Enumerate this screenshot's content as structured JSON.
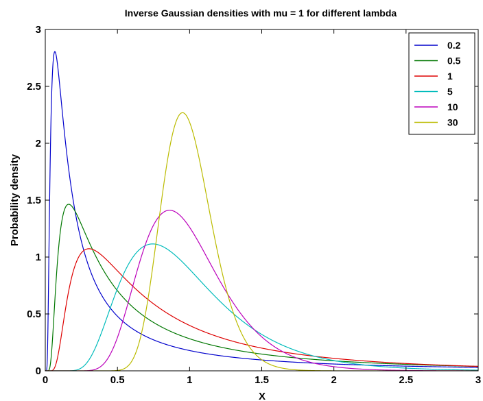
{
  "chart_data": {
    "type": "line",
    "title": "Inverse Gaussian densities with mu = 1 for different lambda",
    "xlabel": "X",
    "ylabel": "Probability density",
    "xlim": [
      0,
      3
    ],
    "ylim": [
      0,
      3
    ],
    "x_ticks": [
      "0",
      "0.5",
      "1",
      "1.5",
      "2",
      "2.5",
      "3"
    ],
    "y_ticks": [
      "0",
      "0.5",
      "1",
      "1.5",
      "2",
      "2.5",
      "3"
    ],
    "grid": false,
    "legend_position": "top-right",
    "mu": 1,
    "series": [
      {
        "name": "0.2",
        "lambda": 0.2,
        "color": "#0000cc"
      },
      {
        "name": "0.5",
        "lambda": 0.5,
        "color": "#007700"
      },
      {
        "name": "1",
        "lambda": 1,
        "color": "#dd0000"
      },
      {
        "name": "5",
        "lambda": 5,
        "color": "#00bbbb"
      },
      {
        "name": "10",
        "lambda": 10,
        "color": "#bb00bb"
      },
      {
        "name": "30",
        "lambda": 30,
        "color": "#bbbb00"
      }
    ]
  }
}
